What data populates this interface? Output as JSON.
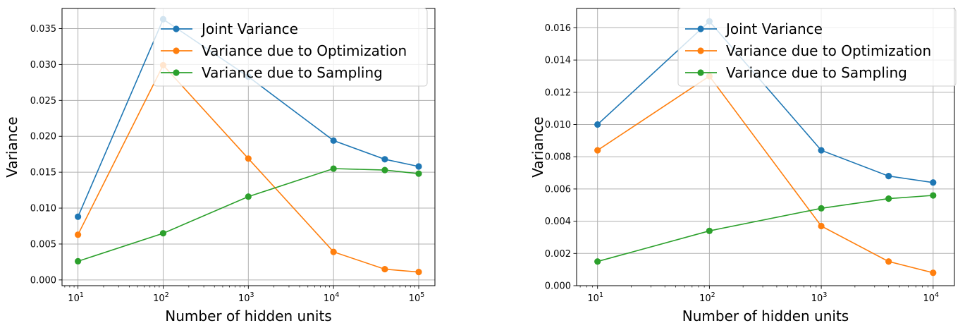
{
  "chart_data": [
    {
      "type": "line",
      "title": "",
      "xlabel": "Number of hidden units",
      "ylabel": "Variance",
      "xscale": "log",
      "xlim": [
        6.5,
        155000
      ],
      "ylim": [
        -0.0008,
        0.0378
      ],
      "xticks": [
        {
          "value": 10,
          "base": "10",
          "exp": "1"
        },
        {
          "value": 100,
          "base": "10",
          "exp": "2"
        },
        {
          "value": 1000,
          "base": "10",
          "exp": "3"
        },
        {
          "value": 10000,
          "base": "10",
          "exp": "4"
        },
        {
          "value": 100000,
          "base": "10",
          "exp": "5"
        }
      ],
      "yticks": [
        {
          "value": 0.0,
          "label": "0.000"
        },
        {
          "value": 0.005,
          "label": "0.005"
        },
        {
          "value": 0.01,
          "label": "0.010"
        },
        {
          "value": 0.015,
          "label": "0.015"
        },
        {
          "value": 0.02,
          "label": "0.020"
        },
        {
          "value": 0.025,
          "label": "0.025"
        },
        {
          "value": 0.03,
          "label": "0.030"
        },
        {
          "value": 0.035,
          "label": "0.035"
        }
      ],
      "grid": true,
      "legend": "top-right",
      "x": [
        10,
        100,
        1000,
        10000,
        40000,
        100000
      ],
      "series": [
        {
          "name": "Joint Variance",
          "color": "#1f77b4",
          "values": [
            0.0088,
            0.0363,
            0.0283,
            0.0194,
            0.0168,
            0.0158
          ]
        },
        {
          "name": "Variance due to Optimization",
          "color": "#ff7f0e",
          "values": [
            0.0063,
            0.0299,
            0.0169,
            0.0039,
            0.0015,
            0.0011
          ]
        },
        {
          "name": "Variance due to Sampling",
          "color": "#2ca02c",
          "values": [
            0.0026,
            0.0065,
            0.0116,
            0.0155,
            0.0153,
            0.0148
          ]
        }
      ]
    },
    {
      "type": "line",
      "title": "",
      "xlabel": "Number of hidden units",
      "ylabel": "Variance",
      "xscale": "log",
      "xlim": [
        6.5,
        15500
      ],
      "ylim": [
        0.0,
        0.0172
      ],
      "xticks": [
        {
          "value": 10,
          "base": "10",
          "exp": "1"
        },
        {
          "value": 100,
          "base": "10",
          "exp": "2"
        },
        {
          "value": 1000,
          "base": "10",
          "exp": "3"
        },
        {
          "value": 10000,
          "base": "10",
          "exp": "4"
        }
      ],
      "yticks": [
        {
          "value": 0.0,
          "label": "0.000"
        },
        {
          "value": 0.002,
          "label": "0.002"
        },
        {
          "value": 0.004,
          "label": "0.004"
        },
        {
          "value": 0.006,
          "label": "0.006"
        },
        {
          "value": 0.008,
          "label": "0.008"
        },
        {
          "value": 0.01,
          "label": "0.010"
        },
        {
          "value": 0.012,
          "label": "0.012"
        },
        {
          "value": 0.014,
          "label": "0.014"
        },
        {
          "value": 0.016,
          "label": "0.016"
        }
      ],
      "grid": true,
      "legend": "top-right",
      "x": [
        10,
        100,
        1000,
        4000,
        10000
      ],
      "series": [
        {
          "name": "Joint Variance",
          "color": "#1f77b4",
          "values": [
            0.01,
            0.0164,
            0.0084,
            0.0068,
            0.0064
          ]
        },
        {
          "name": "Variance due to Optimization",
          "color": "#ff7f0e",
          "values": [
            0.0084,
            0.013,
            0.0037,
            0.0015,
            0.0008
          ]
        },
        {
          "name": "Variance due to Sampling",
          "color": "#2ca02c",
          "values": [
            0.0015,
            0.0034,
            0.0048,
            0.0054,
            0.0056
          ]
        }
      ]
    }
  ]
}
